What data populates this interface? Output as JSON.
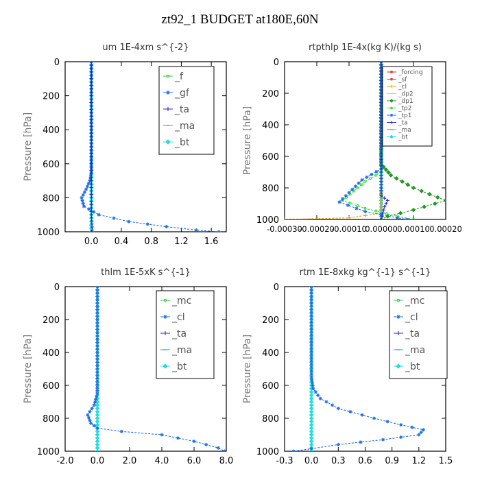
{
  "figure": {
    "title": "zt92_1  BUDGET at180E,60N"
  },
  "chart_data": [
    {
      "type": "line",
      "title": "um   1E-4xm  s^{-2}",
      "ylabel": "Pressure  [hPa]",
      "xlim": [
        -0.35,
        1.8
      ],
      "ylim": [
        1000,
        0
      ],
      "xticks": [
        0.0,
        0.4,
        0.8,
        1.2,
        1.6
      ],
      "xtick_labels": [
        "0.0",
        "0.4",
        "0.8",
        "1.2",
        "1.6"
      ],
      "yticks": [
        0,
        200,
        400,
        600,
        800,
        1000
      ],
      "ytick_labels": [
        "0",
        "200",
        "400",
        "600",
        "800",
        "1000"
      ],
      "legend_position": "top-right",
      "series": [
        {
          "name": "_f",
          "color": "#2ecc40",
          "marker": "circle",
          "x": [
            0,
            0,
            0,
            0,
            0,
            0,
            0,
            0,
            0,
            0,
            0
          ],
          "y": [
            0,
            100,
            200,
            300,
            400,
            500,
            600,
            700,
            800,
            900,
            1000
          ]
        },
        {
          "name": "_gf",
          "color": "#1e6fe0",
          "marker": "star",
          "x": [
            0,
            0,
            0,
            -0.02,
            -0.07,
            -0.13,
            -0.1,
            0.1,
            0.5,
            1.0,
            1.4,
            1.7
          ],
          "y": [
            0,
            500,
            650,
            700,
            750,
            800,
            850,
            900,
            940,
            970,
            990,
            1000
          ]
        },
        {
          "name": "_ta",
          "color": "#2222cc",
          "marker": "plus",
          "x": [
            0,
            0,
            0,
            0,
            0.01,
            0
          ],
          "y": [
            0,
            400,
            800,
            900,
            990,
            1000
          ]
        },
        {
          "name": "_ma",
          "color": "#3399cc",
          "marker": "dash",
          "x": [
            0,
            0,
            0,
            0
          ],
          "y": [
            0,
            400,
            800,
            1000
          ]
        },
        {
          "name": "_bt",
          "color": "#22dddd",
          "marker": "diamond",
          "x": [
            0,
            0,
            0,
            0
          ],
          "y": [
            0,
            400,
            800,
            1000
          ]
        }
      ]
    },
    {
      "type": "line",
      "title": "rtpthlp   1E-4x(kg K)/(kg s)",
      "ylabel": "Pressure  [hPa]",
      "xlim": [
        -0.0003,
        0.0002
      ],
      "ylim": [
        1000,
        0
      ],
      "xticks": [
        -0.0003,
        -0.0002,
        -0.0001,
        0.0,
        0.0001,
        0.0002
      ],
      "xtick_labels": [
        "-0.00030",
        "-0.00020",
        "-0.00010",
        "0.00000",
        "0.00010",
        "0.00020"
      ],
      "yticks": [
        0,
        200,
        400,
        600,
        800,
        1000
      ],
      "ytick_labels": [
        "0",
        "200",
        "400",
        "600",
        "800",
        "1000"
      ],
      "legend_position": "top-right",
      "series": [
        {
          "name": "_forcing",
          "color": "#e0201b",
          "marker": "circle",
          "x": [
            0,
            0,
            0,
            0
          ],
          "y": [
            0,
            400,
            800,
            1000
          ]
        },
        {
          "name": "_sf",
          "color": "#ff3333",
          "marker": "star",
          "x": [
            0,
            0,
            0,
            0
          ],
          "y": [
            0,
            400,
            800,
            1000
          ]
        },
        {
          "name": "_cl",
          "color": "#e8a000",
          "marker": "plus",
          "x": [
            0,
            0,
            0,
            -0.0001,
            -0.0003
          ],
          "y": [
            0,
            800,
            960,
            990,
            1000
          ]
        },
        {
          "name": "_dp2",
          "color": "#ffcc33",
          "marker": "dash",
          "x": [
            0,
            0,
            0,
            0
          ],
          "y": [
            0,
            400,
            800,
            1000
          ]
        },
        {
          "name": "_dp1",
          "color": "#229922",
          "marker": "diamond",
          "x": [
            0,
            0,
            3e-05,
            0.0001,
            0.0002,
            0.0001,
            2e-05,
            0
          ],
          "y": [
            0,
            650,
            720,
            800,
            880,
            940,
            980,
            1000
          ]
        },
        {
          "name": "_tp2",
          "color": "#33dd33",
          "marker": "circle",
          "x": [
            0,
            0,
            -5e-05,
            -0.00012,
            -5e-05,
            5e-05,
            0.0001
          ],
          "y": [
            0,
            700,
            760,
            880,
            930,
            980,
            1000
          ]
        },
        {
          "name": "_tp1",
          "color": "#1e6fe0",
          "marker": "star",
          "x": [
            0,
            0,
            -6e-05,
            -0.00013,
            -5e-05,
            5e-05,
            8e-05
          ],
          "y": [
            0,
            680,
            750,
            890,
            950,
            990,
            1000
          ]
        },
        {
          "name": "_ta",
          "color": "#2222cc",
          "marker": "plus",
          "x": [
            0,
            0,
            0,
            2e-05,
            1e-05,
            0
          ],
          "y": [
            0,
            800,
            850,
            880,
            920,
            1000
          ]
        },
        {
          "name": "_ma",
          "color": "#3399cc",
          "marker": "dash",
          "x": [
            0,
            0,
            0,
            0
          ],
          "y": [
            0,
            400,
            800,
            1000
          ]
        },
        {
          "name": "_bt",
          "color": "#22dddd",
          "marker": "diamond",
          "x": [
            0,
            0,
            0,
            0
          ],
          "y": [
            0,
            400,
            800,
            1000
          ]
        }
      ]
    },
    {
      "type": "line",
      "title": "thlm   1E-5xK  s^{-1}",
      "ylabel": "Pressure  [hPa]",
      "xlim": [
        -2.0,
        8.0
      ],
      "ylim": [
        1000,
        0
      ],
      "xticks": [
        -2.0,
        0.0,
        2.0,
        4.0,
        6.0,
        8.0
      ],
      "xtick_labels": [
        "-2.0",
        "0.0",
        "2.0",
        "4.0",
        "6.0",
        "8.0"
      ],
      "yticks": [
        0,
        200,
        400,
        600,
        800,
        1000
      ],
      "ytick_labels": [
        "0",
        "200",
        "400",
        "600",
        "800",
        "1000"
      ],
      "legend_position": "top-right",
      "series": [
        {
          "name": "_mc",
          "color": "#2ecc40",
          "marker": "circle",
          "x": [
            0,
            0,
            0,
            0
          ],
          "y": [
            0,
            400,
            800,
            1000
          ]
        },
        {
          "name": "_cl",
          "color": "#1e6fe0",
          "marker": "star",
          "x": [
            0,
            0,
            0,
            -0.2,
            -0.6,
            -0.4,
            0,
            1.5,
            4.0,
            6.0,
            7.5,
            7.9
          ],
          "y": [
            0,
            500,
            650,
            720,
            780,
            830,
            860,
            880,
            900,
            940,
            980,
            1000
          ]
        },
        {
          "name": "_ta",
          "color": "#2222cc",
          "marker": "plus",
          "x": [
            0,
            0,
            0,
            0
          ],
          "y": [
            0,
            400,
            800,
            1000
          ]
        },
        {
          "name": "_ma",
          "color": "#3399cc",
          "marker": "dash",
          "x": [
            0,
            0,
            0,
            0
          ],
          "y": [
            0,
            400,
            800,
            1000
          ]
        },
        {
          "name": "_bt",
          "color": "#22dddd",
          "marker": "diamond",
          "x": [
            0,
            0,
            0,
            0
          ],
          "y": [
            0,
            400,
            800,
            1000
          ]
        }
      ]
    },
    {
      "type": "line",
      "title": "rtm   1E-8xkg  kg^{-1}  s^{-1}",
      "ylabel": "Pressure  [hPa]",
      "xlim": [
        -0.3,
        1.5
      ],
      "ylim": [
        1000,
        0
      ],
      "xticks": [
        -0.3,
        0.0,
        0.3,
        0.6,
        0.9,
        1.2,
        1.5
      ],
      "xtick_labels": [
        "-0.3",
        "0.0",
        "0.3",
        "0.6",
        "0.9",
        "1.2",
        "1.5"
      ],
      "yticks": [
        0,
        200,
        400,
        600,
        800,
        1000
      ],
      "ytick_labels": [
        "0",
        "200",
        "400",
        "600",
        "800",
        "1000"
      ],
      "legend_position": "top-right",
      "series": [
        {
          "name": "_mc",
          "color": "#2ecc40",
          "marker": "circle",
          "x": [
            0,
            0,
            0,
            0
          ],
          "y": [
            0,
            400,
            800,
            1000
          ]
        },
        {
          "name": "_cl",
          "color": "#1e6fe0",
          "marker": "star",
          "x": [
            0,
            0,
            0.02,
            0.1,
            0.3,
            0.7,
            1.0,
            1.25,
            1.2,
            0.8,
            0.3,
            0,
            -0.2
          ],
          "y": [
            0,
            550,
            620,
            680,
            740,
            800,
            840,
            870,
            900,
            930,
            960,
            985,
            1000
          ]
        },
        {
          "name": "_ta",
          "color": "#2222cc",
          "marker": "plus",
          "x": [
            0,
            0,
            0,
            0
          ],
          "y": [
            0,
            400,
            800,
            1000
          ]
        },
        {
          "name": "_ma",
          "color": "#3399cc",
          "marker": "dash",
          "x": [
            0,
            0,
            0,
            0
          ],
          "y": [
            0,
            400,
            800,
            1000
          ]
        },
        {
          "name": "_bt",
          "color": "#22dddd",
          "marker": "diamond",
          "x": [
            0,
            0,
            0,
            0
          ],
          "y": [
            0,
            400,
            800,
            1000
          ]
        }
      ]
    }
  ]
}
